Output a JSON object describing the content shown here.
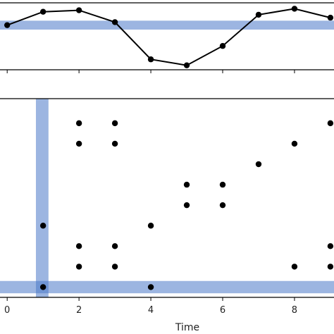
{
  "chart_data": [
    {
      "type": "line",
      "panel": "top",
      "x": [
        0,
        1,
        2,
        3,
        4,
        5,
        6,
        7,
        8,
        9
      ],
      "y": [
        0.45,
        0.9,
        0.95,
        0.55,
        -0.7,
        -0.9,
        -0.25,
        0.8,
        1.0,
        0.7
      ],
      "xlim": [
        -0.2,
        9.1
      ],
      "ylim": [
        -1.05,
        1.2
      ],
      "highlight_band": {
        "orientation": "horizontal",
        "y_range": [
          0.3,
          0.6
        ],
        "color": "#4a78c9"
      },
      "marker_color": "#000000",
      "line_color": "#000000"
    },
    {
      "type": "scatter",
      "panel": "bottom",
      "x": [
        1,
        1,
        2,
        2,
        2,
        2,
        3,
        3,
        3,
        3,
        4,
        4,
        5,
        5,
        6,
        6,
        7,
        8,
        8,
        9,
        9,
        9
      ],
      "y": [
        0,
        3,
        1,
        2,
        7,
        8,
        1,
        2,
        7,
        8,
        0,
        3,
        4,
        5,
        4,
        5,
        6,
        1,
        7,
        1,
        2,
        8
      ],
      "xlim": [
        -0.2,
        9.1
      ],
      "ylim": [
        -0.5,
        9.2
      ],
      "xticks": [
        0,
        2,
        4,
        6,
        8
      ],
      "xtick_labels": [
        "0",
        "2",
        "4",
        "6",
        "8"
      ],
      "xlabel": "Time",
      "highlight_bands": [
        {
          "orientation": "vertical",
          "x_range": [
            0.8,
            1.15
          ],
          "color": "#4a78c9"
        },
        {
          "orientation": "horizontal",
          "y_range": [
            -0.3,
            0.3
          ],
          "color": "#4a78c9"
        }
      ],
      "marker_color": "#000000"
    }
  ]
}
